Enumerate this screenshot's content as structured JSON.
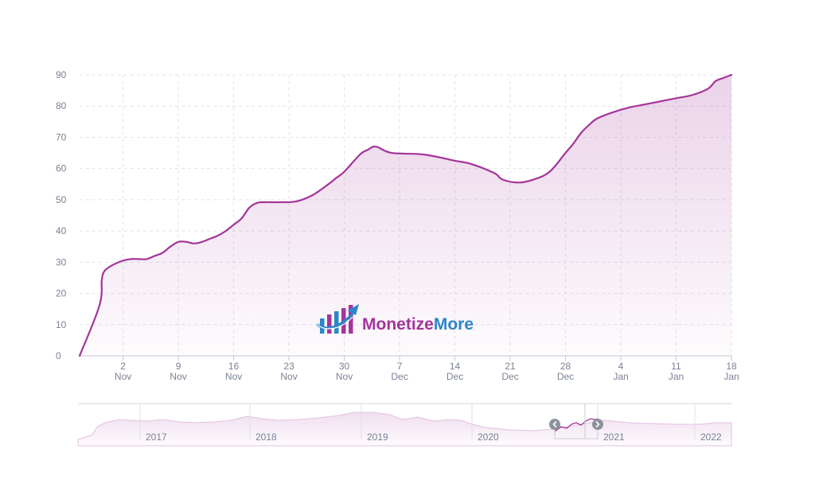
{
  "chart_data": {
    "type": "area",
    "title": "",
    "xlabel": "",
    "ylabel": "",
    "ylim": [
      0,
      90
    ],
    "y_ticks": [
      "0",
      "10",
      "20",
      "30",
      "40",
      "50",
      "60",
      "70",
      "80",
      "90"
    ],
    "x_ticks": [
      {
        "day": 2,
        "line1": "2",
        "line2": "Nov"
      },
      {
        "day": 9,
        "line1": "9",
        "line2": "Nov"
      },
      {
        "day": 16,
        "line1": "16",
        "line2": "Nov"
      },
      {
        "day": 23,
        "line1": "23",
        "line2": "Nov"
      },
      {
        "day": 30,
        "line1": "30",
        "line2": "Nov"
      },
      {
        "day": 37,
        "line1": "7",
        "line2": "Dec"
      },
      {
        "day": 44,
        "line1": "14",
        "line2": "Dec"
      },
      {
        "day": 51,
        "line1": "21",
        "line2": "Dec"
      },
      {
        "day": 58,
        "line1": "28",
        "line2": "Dec"
      },
      {
        "day": 65,
        "line1": "4",
        "line2": "Jan"
      },
      {
        "day": 72,
        "line1": "11",
        "line2": "Jan"
      },
      {
        "day": 79,
        "line1": "18",
        "line2": "Jan"
      }
    ],
    "grid": true,
    "series": [
      {
        "color": "#a4359a",
        "x": [
          -3.5,
          -1.0,
          -0.7,
          -0.5,
          0.0,
          1.0,
          2.0,
          3.0,
          4.0,
          5.0,
          6.0,
          7.0,
          8.0,
          9.0,
          10.0,
          11.0,
          12.0,
          13.0,
          14.0,
          15.0,
          16.0,
          17.0,
          18.0,
          19.0,
          20.0,
          21.0,
          22.0,
          24.0,
          26.0,
          28.0,
          29.0,
          30.0,
          32.0,
          33.0,
          34.0,
          36.0,
          40.0,
          44.0,
          46.0,
          49.0,
          50.0,
          52.0,
          54.0,
          56.0,
          58.0,
          59.0,
          60.0,
          61.0,
          62.0,
          64.0,
          66.0,
          68.0,
          70.0,
          72.0,
          74.0,
          76.0,
          77.0,
          78.0,
          79.0
        ],
        "y": [
          0.0,
          16.0,
          24.0,
          26.5,
          28.0,
          29.5,
          30.5,
          31.0,
          31.0,
          31.0,
          32.0,
          33.0,
          35.0,
          36.5,
          36.5,
          36.0,
          36.5,
          37.5,
          38.5,
          40.0,
          42.0,
          44.0,
          47.5,
          49.0,
          49.2,
          49.2,
          49.2,
          49.5,
          51.5,
          55.0,
          57.0,
          59.0,
          64.5,
          66.0,
          67.0,
          65.0,
          64.5,
          62.5,
          61.5,
          58.5,
          56.5,
          55.5,
          56.5,
          59.0,
          65.0,
          68.0,
          71.5,
          74.0,
          76.0,
          78.0,
          79.5,
          80.5,
          81.5,
          82.5,
          83.5,
          85.5,
          88.0,
          89.0,
          90.0
        ]
      }
    ]
  },
  "navigator": {
    "year_labels": [
      "2017",
      "2018",
      "2019",
      "2020",
      "2021",
      "2022"
    ]
  },
  "logo": {
    "word1": "Monetize",
    "word2": "More",
    "color1": "#a4359a",
    "color2": "#2d86c8"
  }
}
